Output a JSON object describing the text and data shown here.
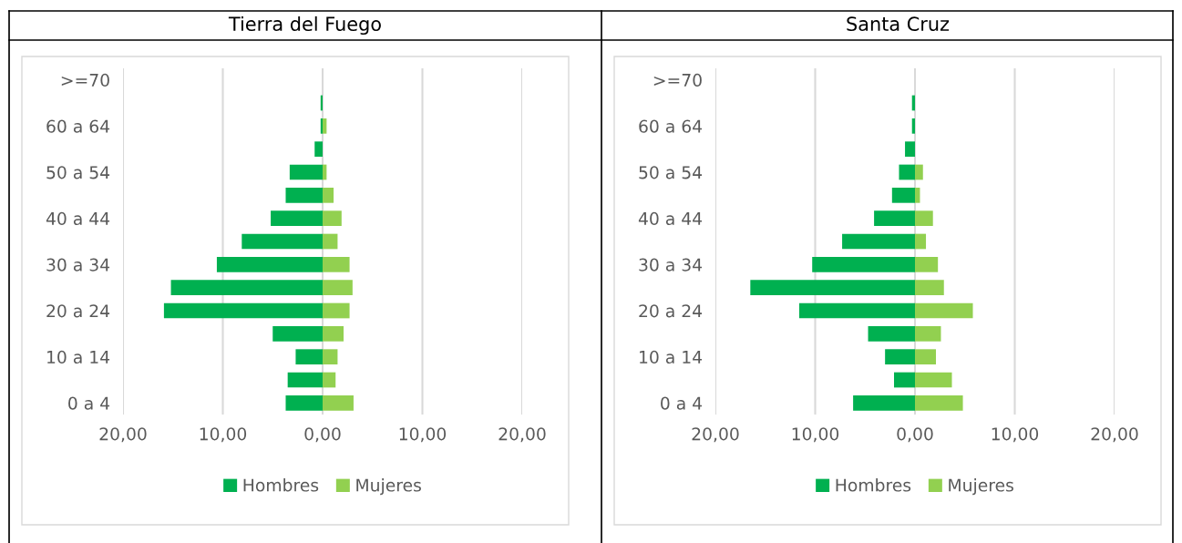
{
  "chart_data": [
    {
      "type": "bar",
      "orientation": "horizontal",
      "stacked": true,
      "title": "Tierra del Fuego",
      "categories": [
        ">=70",
        null,
        "60 a 64",
        null,
        "50 a 54",
        null,
        "40 a 44",
        null,
        "30 a 34",
        null,
        "20 a 24",
        null,
        "10 a 14",
        null,
        "0 a 4"
      ],
      "series": [
        {
          "name": "Hombres",
          "color": "#00b050",
          "values": [
            0,
            -0.2,
            -0.2,
            -0.8,
            -3.3,
            -3.7,
            -5.2,
            -8.1,
            -10.6,
            -15.2,
            -15.9,
            -5.0,
            -2.7,
            -3.5,
            -3.7
          ]
        },
        {
          "name": "Mujeres",
          "color": "#92d050",
          "values": [
            0,
            0,
            0.4,
            0,
            0.4,
            1.1,
            1.9,
            1.5,
            2.7,
            3.0,
            2.7,
            2.1,
            1.5,
            1.3,
            3.1
          ]
        }
      ],
      "xlim": [
        -20,
        20
      ],
      "xticks": [
        {
          "value": -20,
          "label": "20,00"
        },
        {
          "value": -10,
          "label": "10,00"
        },
        {
          "value": 0,
          "label": "0,00"
        },
        {
          "value": 10,
          "label": "10,00"
        },
        {
          "value": 20,
          "label": "20,00"
        }
      ],
      "grid": "x",
      "legend": "bottom"
    },
    {
      "type": "bar",
      "orientation": "horizontal",
      "stacked": true,
      "title": "Santa Cruz",
      "categories": [
        ">=70",
        null,
        "60 a 64",
        null,
        "50 a 54",
        null,
        "40 a 44",
        null,
        "30 a 34",
        null,
        "20 a 24",
        null,
        "10 a 14",
        null,
        "0 a 4"
      ],
      "series": [
        {
          "name": "Hombres",
          "color": "#00b050",
          "values": [
            0,
            -0.3,
            -0.3,
            -1.0,
            -1.6,
            -2.3,
            -4.1,
            -7.3,
            -10.3,
            -16.5,
            -11.6,
            -4.7,
            -3.0,
            -2.1,
            -6.2
          ]
        },
        {
          "name": "Mujeres",
          "color": "#92d050",
          "values": [
            0,
            0,
            0,
            0,
            0.8,
            0.5,
            1.8,
            1.1,
            2.3,
            2.9,
            5.8,
            2.6,
            2.1,
            3.7,
            4.8
          ]
        }
      ],
      "xlim": [
        -20,
        20
      ],
      "xticks": [
        {
          "value": -20,
          "label": "20,00"
        },
        {
          "value": -10,
          "label": "10,00"
        },
        {
          "value": 0,
          "label": "0,00"
        },
        {
          "value": 10,
          "label": "10,00"
        },
        {
          "value": 20,
          "label": "20,00"
        }
      ],
      "grid": "x",
      "legend": "bottom"
    }
  ]
}
